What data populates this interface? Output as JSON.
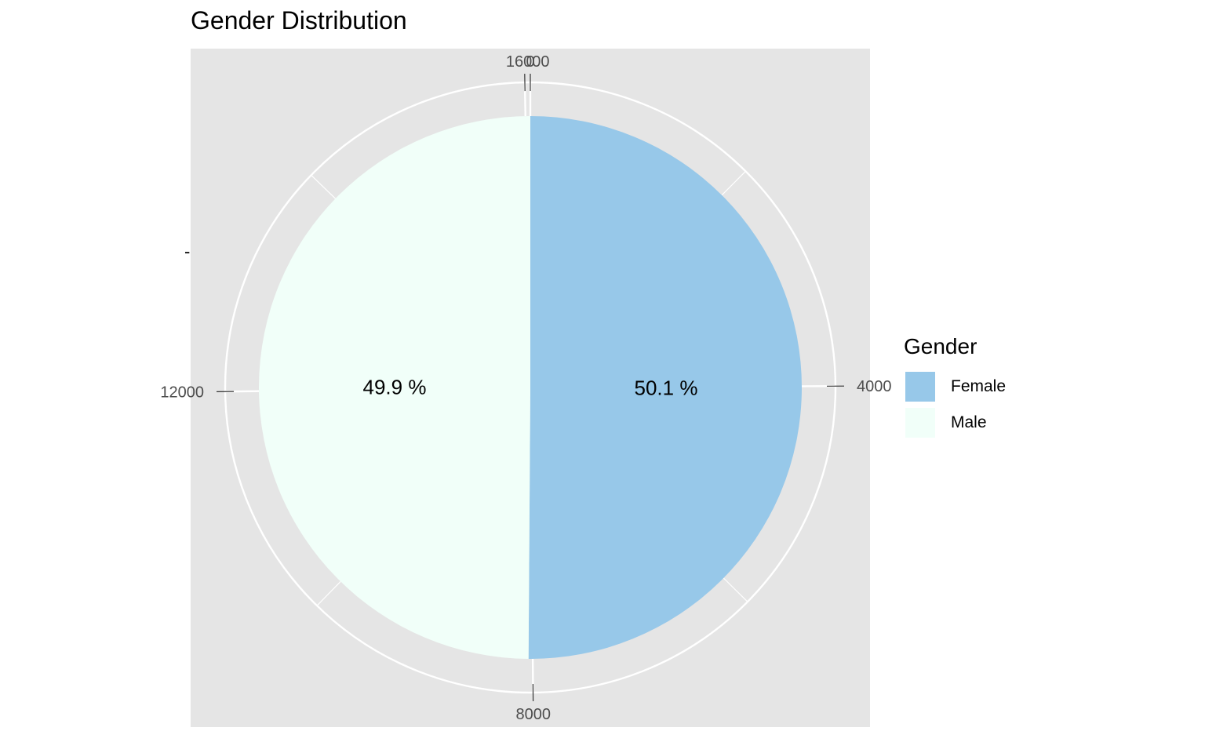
{
  "chart_data": {
    "type": "pie",
    "title": "Gender Distribution",
    "ylabel": "-",
    "total": 16046,
    "categories": [
      "Female",
      "Male"
    ],
    "values": [
      8040,
      8006
    ],
    "percent_labels": [
      "50.1 %",
      "49.9 %"
    ],
    "tick_values": [
      0,
      4000,
      8000,
      12000,
      16000
    ],
    "tick_labels": [
      "0",
      "4000",
      "8000",
      "12000",
      "16000"
    ],
    "colors": {
      "Female": "#97c8e9",
      "Male": "#f1fff9",
      "panel": "#e5e5e5",
      "grid": "#ffffff"
    },
    "legend": {
      "title": "Gender",
      "position": "right"
    },
    "grid": true
  }
}
